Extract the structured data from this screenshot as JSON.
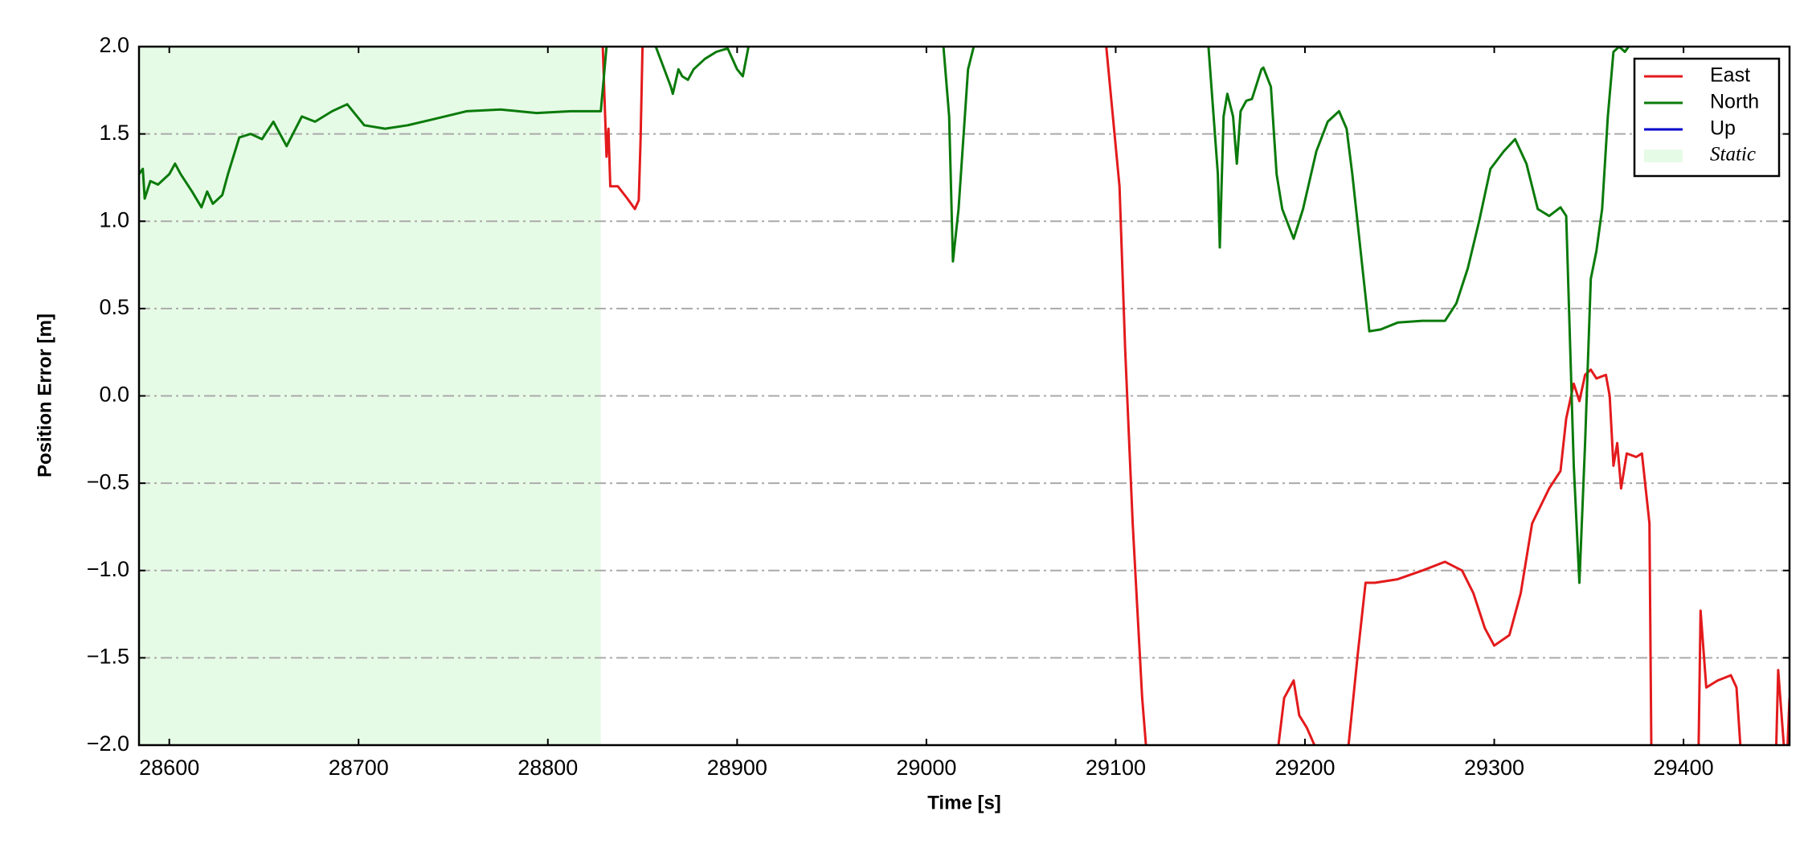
{
  "chart_data": {
    "type": "line",
    "x_label": "Time [s]",
    "y_label": "Position Error [m]",
    "xlim": [
      28584,
      29456
    ],
    "ylim": [
      -2.0,
      2.0
    ],
    "xticks": [
      28600,
      28700,
      28800,
      28900,
      29000,
      29100,
      29200,
      29300,
      29400
    ],
    "yticks": [
      {
        "value": 2.0,
        "label": "2.0"
      },
      {
        "value": 1.5,
        "label": "1.5"
      },
      {
        "value": 1.0,
        "label": "1.0"
      },
      {
        "value": 0.5,
        "label": "0.5"
      },
      {
        "value": 0.0,
        "label": "0.0"
      },
      {
        "value": -0.5,
        "label": "−0.5"
      },
      {
        "value": -1.0,
        "label": "−1.0"
      },
      {
        "value": -1.5,
        "label": "−1.5"
      },
      {
        "value": -2.0,
        "label": "−2.0"
      }
    ],
    "grid": true,
    "legend": "upper right",
    "spans": [
      {
        "name": "Static",
        "x": [
          28584,
          28828
        ],
        "color": "#e6fbe6"
      }
    ],
    "series": [
      {
        "name": "East",
        "color": "#e31a1c",
        "x": [
          28829,
          28831,
          28832,
          28833,
          28837,
          28842,
          28846,
          28848,
          28849,
          28850,
          28860,
          29095,
          29102,
          29105,
          29109,
          29114,
          29116,
          29120,
          29186,
          29189,
          29194,
          29197,
          29201,
          29205,
          29210,
          29223,
          29228,
          29232,
          29237,
          29249,
          29262,
          29274,
          29283,
          29289,
          29295,
          29300,
          29308,
          29314,
          29320,
          29329,
          29335,
          29338,
          29342,
          29345,
          29348,
          29351,
          29354,
          29359,
          29361,
          29363,
          29365,
          29367,
          29370,
          29375,
          29378,
          29382,
          29383,
          29390,
          29408,
          29409,
          29412,
          29418,
          29425,
          29428,
          29430,
          29440,
          29449,
          29450,
          29453,
          29454,
          29455,
          29456
        ],
        "values": [
          2.0,
          1.37,
          1.53,
          1.2,
          1.2,
          1.13,
          1.07,
          1.12,
          1.47,
          2.0,
          null,
          2.0,
          1.2,
          0.27,
          -0.73,
          -1.73,
          -2.0,
          null,
          -2.0,
          -1.73,
          -1.63,
          -1.83,
          -1.9,
          -2.0,
          null,
          -2.0,
          -1.47,
          -1.07,
          -1.07,
          -1.05,
          -1.0,
          -0.95,
          -1.0,
          -1.13,
          -1.33,
          -1.43,
          -1.37,
          -1.13,
          -0.73,
          -0.53,
          -0.43,
          -0.13,
          0.07,
          -0.03,
          0.12,
          0.15,
          0.1,
          0.12,
          0.0,
          -0.4,
          -0.27,
          -0.53,
          -0.33,
          -0.35,
          -0.33,
          -0.73,
          -2.0,
          null,
          -2.0,
          -1.23,
          -1.67,
          -1.63,
          -1.6,
          -1.67,
          -2.0,
          null,
          -2.0,
          -1.57,
          -2.0,
          null,
          -2.0,
          -1.73
        ]
      },
      {
        "name": "North",
        "color": "#0a7a0a",
        "x": [
          28584,
          28586,
          28587,
          28590,
          28594,
          28600,
          28603,
          28606,
          28612,
          28617,
          28620,
          28623,
          28628,
          28631,
          28637,
          28643,
          28649,
          28655,
          28662,
          28670,
          28677,
          28686,
          28694,
          28703,
          28714,
          28726,
          28738,
          28757,
          28775,
          28794,
          28812,
          28826,
          28828,
          28831,
          28835,
          28857,
          28865,
          28866,
          28869,
          28871,
          28874,
          28877,
          28883,
          28889,
          28895,
          28900,
          28903,
          28906,
          28910,
          29009,
          29012,
          29014,
          29017,
          29022,
          29025,
          29030,
          29149,
          29154,
          29155,
          29157,
          29159,
          29162,
          29164,
          29166,
          29169,
          29172,
          29177,
          29178,
          29182,
          29185,
          29188,
          29194,
          29199,
          29206,
          29212,
          29218,
          29222,
          29225,
          29231,
          29234,
          29240,
          29249,
          29262,
          29274,
          29280,
          29286,
          29292,
          29298,
          29305,
          29311,
          29317,
          29323,
          29329,
          29335,
          29338,
          29342,
          29345,
          29348,
          29351,
          29354,
          29357,
          29360,
          29363,
          29366,
          29369,
          29371
        ],
        "values": [
          1.27,
          1.3,
          1.13,
          1.23,
          1.21,
          1.27,
          1.33,
          1.27,
          1.17,
          1.08,
          1.17,
          1.1,
          1.15,
          1.27,
          1.48,
          1.5,
          1.47,
          1.57,
          1.43,
          1.6,
          1.57,
          1.63,
          1.67,
          1.55,
          1.53,
          1.55,
          1.58,
          1.63,
          1.64,
          1.62,
          1.63,
          1.63,
          1.63,
          2.0,
          null,
          2.0,
          1.77,
          1.73,
          1.87,
          1.83,
          1.81,
          1.87,
          1.93,
          1.97,
          1.99,
          1.87,
          1.83,
          2.0,
          null,
          2.0,
          1.6,
          0.77,
          1.07,
          1.87,
          2.0,
          null,
          2.0,
          1.27,
          0.85,
          1.6,
          1.73,
          1.6,
          1.33,
          1.63,
          1.69,
          1.7,
          1.87,
          1.88,
          1.77,
          1.27,
          1.07,
          0.9,
          1.07,
          1.4,
          1.57,
          1.63,
          1.53,
          1.27,
          0.67,
          0.37,
          0.38,
          0.42,
          0.43,
          0.43,
          0.53,
          0.73,
          1.0,
          1.3,
          1.4,
          1.47,
          1.33,
          1.07,
          1.03,
          1.08,
          1.03,
          -0.4,
          -1.07,
          -0.27,
          0.67,
          0.83,
          1.07,
          1.6,
          1.97,
          2.0,
          1.97,
          2.0
        ]
      },
      {
        "name": "Up",
        "color": "#0000cc",
        "x": [],
        "values": []
      }
    ]
  }
}
